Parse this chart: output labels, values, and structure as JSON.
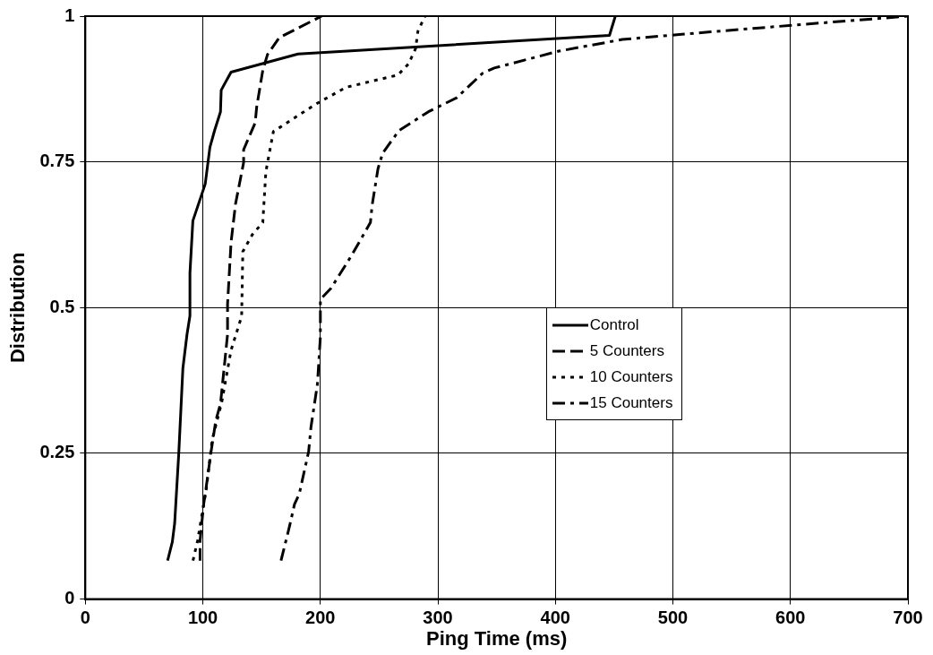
{
  "chart_data": {
    "type": "line",
    "xlabel": "Ping Time (ms)",
    "ylabel": "Distribution",
    "xlim": [
      0,
      700
    ],
    "xticks": [
      0,
      100,
      200,
      300,
      400,
      500,
      600,
      700
    ],
    "ylim": [
      0,
      1
    ],
    "yticks": [
      0,
      0.25,
      0.5,
      0.75,
      1
    ],
    "grid": true,
    "legend": "right",
    "marker": "none",
    "series": [
      {
        "name": "Control",
        "color": "#000000",
        "line_style": "solid",
        "x": [
          70,
          74,
          76,
          79.5,
          83,
          86.5,
          89,
          89,
          91.5,
          102,
          106,
          110,
          115,
          115.6,
          124,
          181,
          446,
          451
        ],
        "values": [
          0.066,
          0.098,
          0.13,
          0.25,
          0.396,
          0.454,
          0.486,
          0.559,
          0.649,
          0.712,
          0.775,
          0.804,
          0.836,
          0.873,
          0.904,
          0.935,
          0.967,
          1
        ]
      },
      {
        "name": "5 Counters",
        "color": "#000000",
        "line_style": "dashed",
        "x": [
          97.6,
          97.6,
          100.7,
          102,
          107,
          111,
          115,
          121,
          121,
          124,
          127.8,
          134.7,
          134.7,
          144.5,
          145.8,
          151,
          155,
          165,
          201
        ],
        "values": [
          0.066,
          0.1,
          0.163,
          0.18,
          0.253,
          0.306,
          0.335,
          0.454,
          0.506,
          0.612,
          0.678,
          0.749,
          0.771,
          0.817,
          0.844,
          0.907,
          0.934,
          0.963,
          1
        ]
      },
      {
        "name": "10 Counters",
        "color": "#000000",
        "line_style": "dotted",
        "x": [
          91.6,
          95.5,
          103,
          108,
          116,
          124,
          133,
          134,
          142,
          151,
          153.6,
          160,
          170,
          196,
          222,
          266,
          275,
          281,
          283,
          289
        ],
        "values": [
          0.066,
          0.1,
          0.19,
          0.274,
          0.337,
          0.427,
          0.485,
          0.596,
          0.625,
          0.646,
          0.733,
          0.802,
          0.815,
          0.849,
          0.878,
          0.899,
          0.918,
          0.944,
          0.974,
          1
        ]
      },
      {
        "name": "15 Counters",
        "color": "#000000",
        "line_style": "dashdot",
        "x": [
          166.5,
          174,
          178,
          182,
          190,
          192,
          197.5,
          200,
          200,
          209,
          227,
          242.6,
          244,
          249,
          253,
          267,
          292,
          316,
          338,
          348,
          403,
          457,
          532,
          612,
          700
        ],
        "values": [
          0.066,
          0.127,
          0.163,
          0.18,
          0.253,
          0.295,
          0.369,
          0.45,
          0.514,
          0.533,
          0.591,
          0.646,
          0.675,
          0.738,
          0.765,
          0.804,
          0.836,
          0.86,
          0.902,
          0.911,
          0.94,
          0.96,
          0.973,
          0.986,
          1
        ]
      }
    ]
  }
}
